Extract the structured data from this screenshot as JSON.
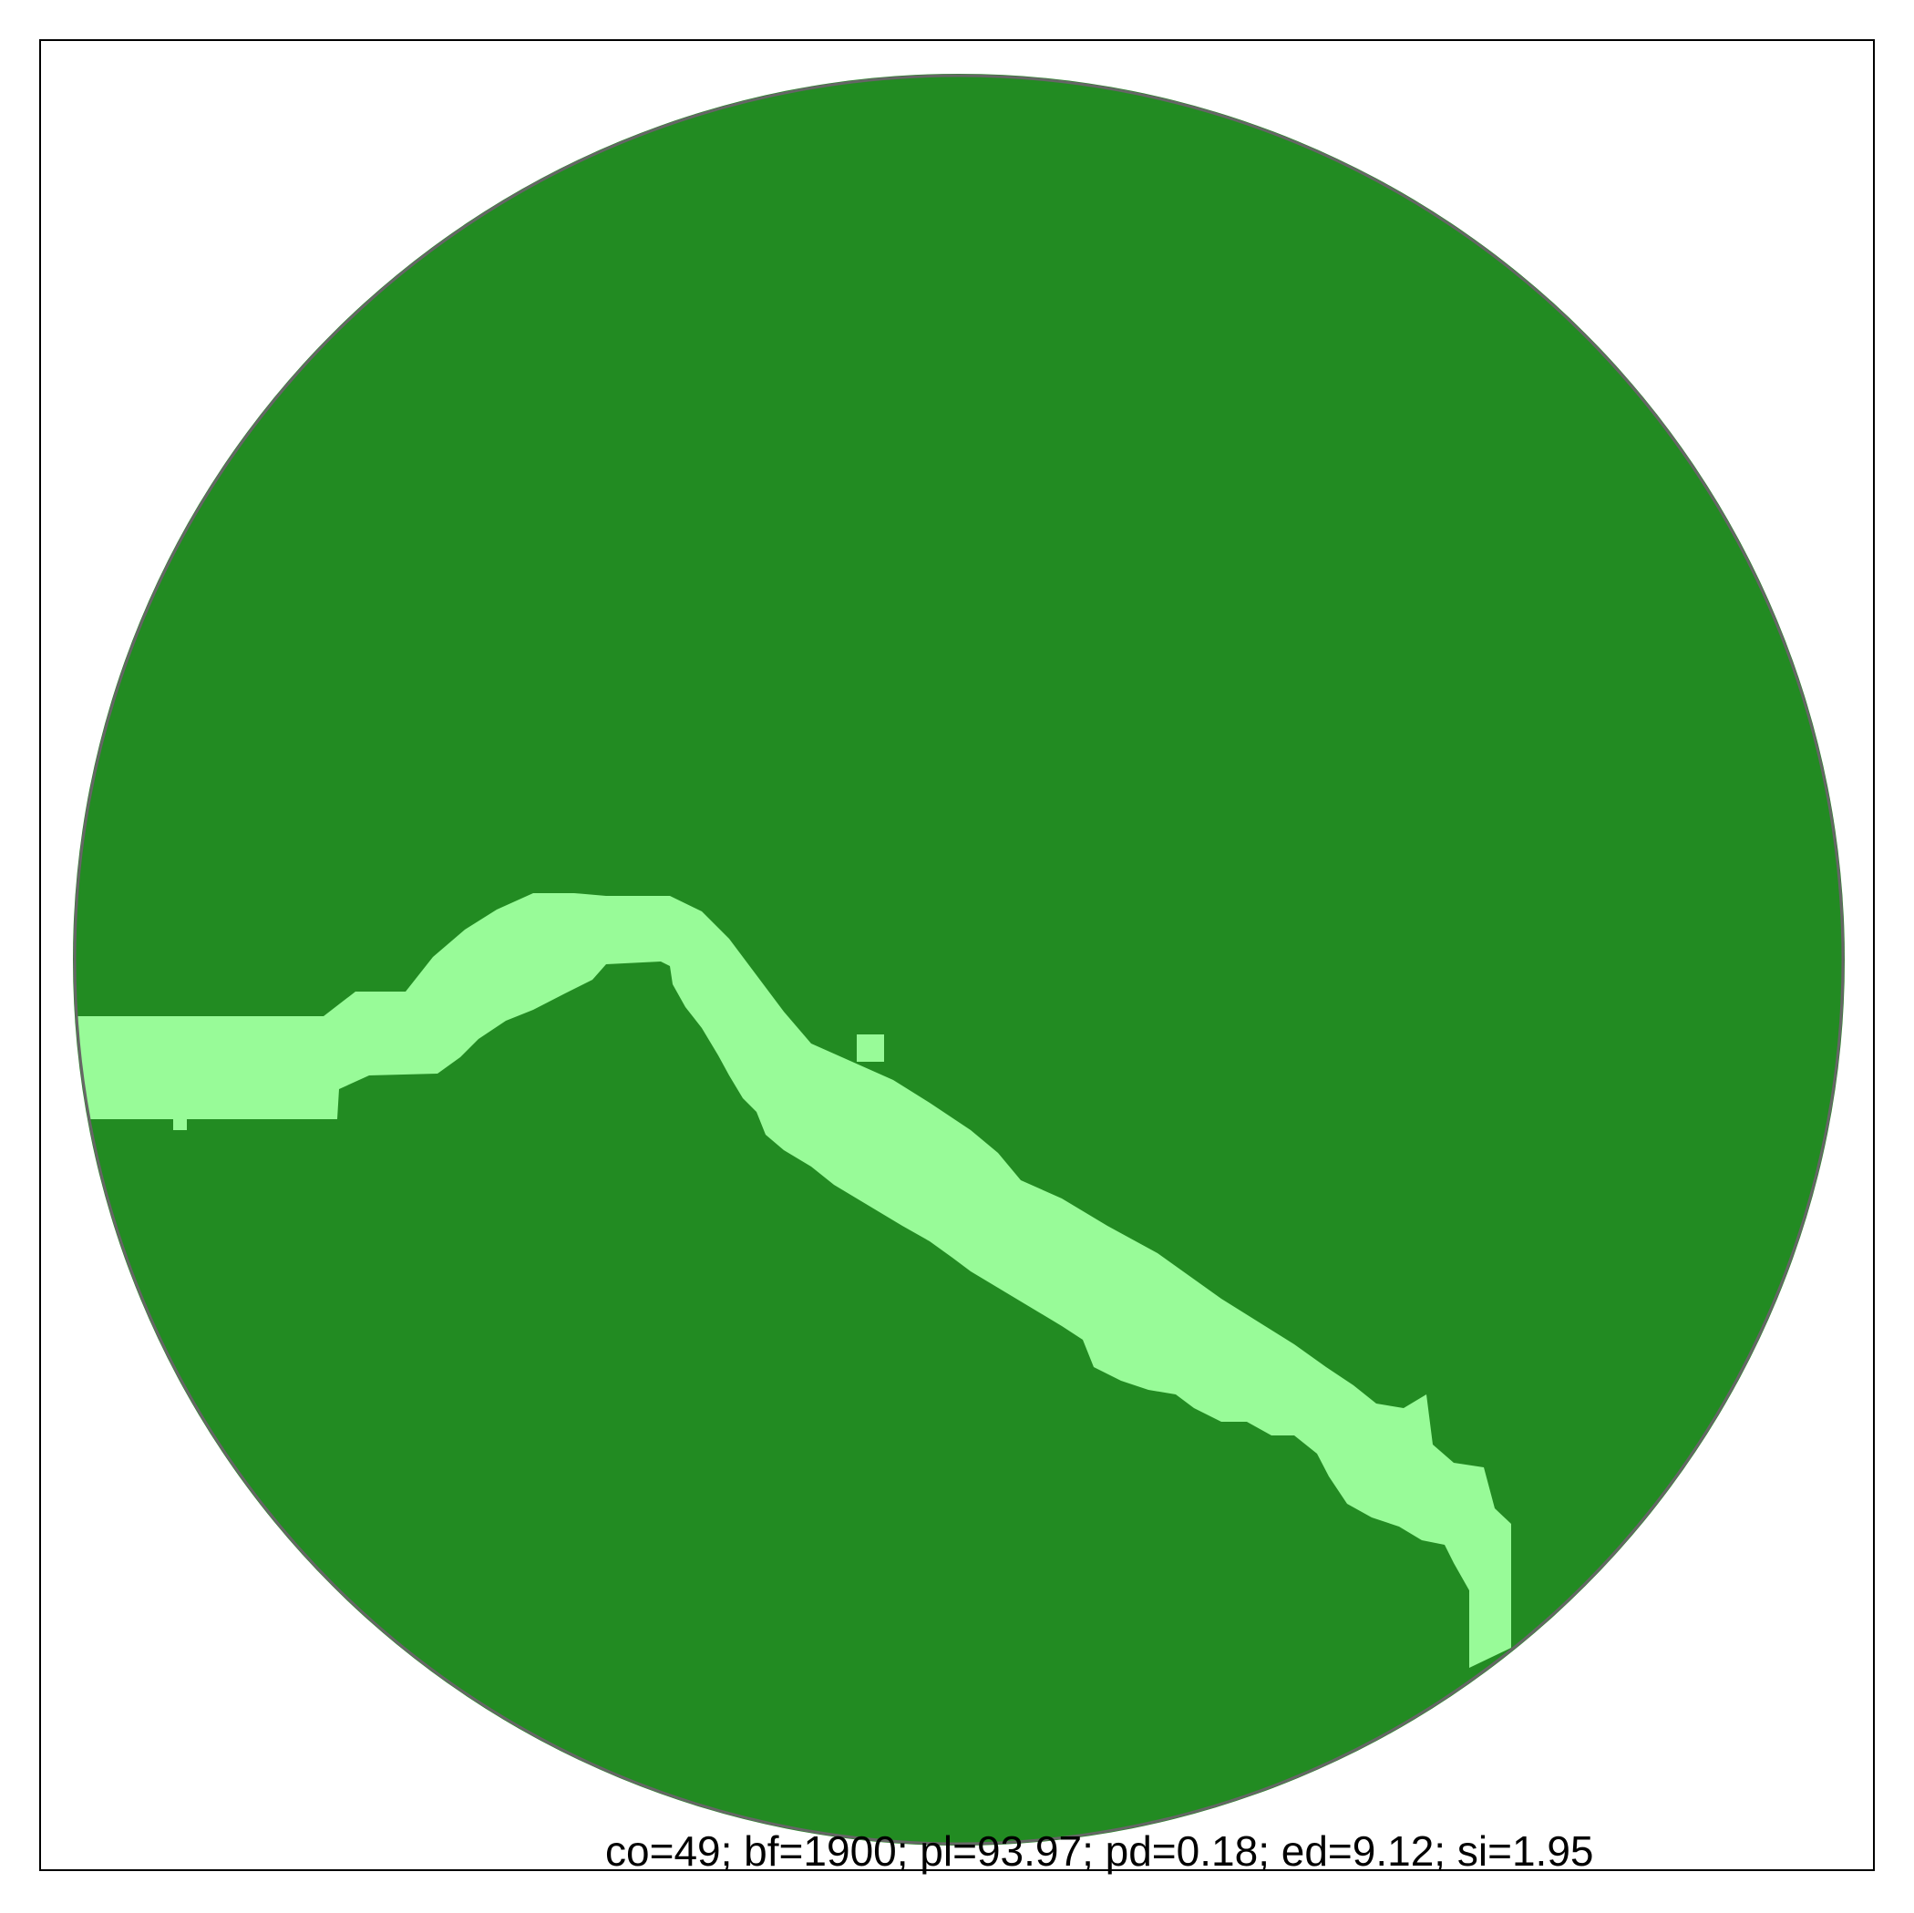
{
  "caption": "co=49; bf=1900; pl=93.97; pd=0.18; ed=9.12; si=1.95",
  "colors": {
    "background": "#ffffff",
    "frame": "#000000",
    "habitat": "#228b22",
    "corridor": "#98fb98",
    "boundary_circle": "#666666"
  },
  "metrics": {
    "co": 49,
    "bf": 1900,
    "pl": 93.97,
    "pd": 0.18,
    "ed": 9.12,
    "si": 1.95
  }
}
